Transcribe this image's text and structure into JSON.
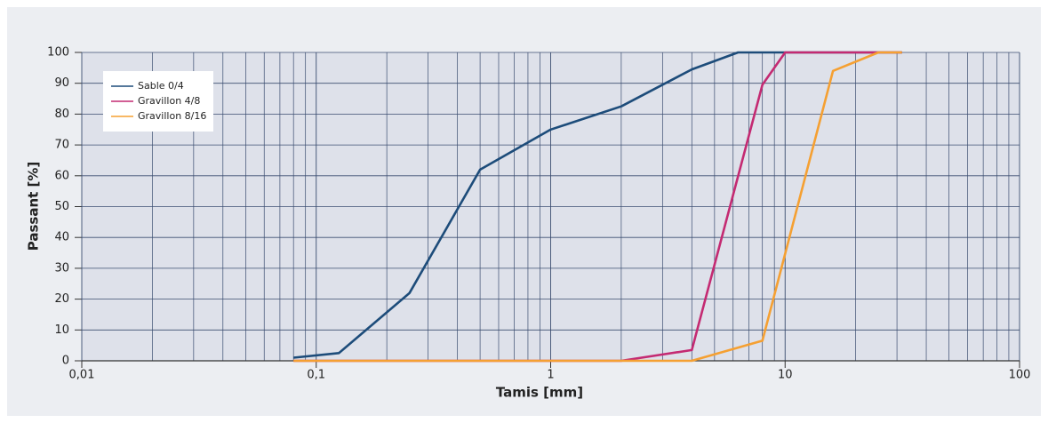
{
  "chart_data": {
    "type": "line",
    "xlabel": "Tamis [mm]",
    "ylabel": "Passant [%]",
    "log_x": true,
    "grid": true,
    "legend": "upper left",
    "xlim": [
      0.01,
      100
    ],
    "xticks": [
      {
        "value": 0.01,
        "label": "0,01"
      },
      {
        "value": 0.1,
        "label": "0,1"
      },
      1,
      10,
      100
    ],
    "ylim": [
      0,
      100
    ],
    "yticks": [
      0,
      10,
      20,
      30,
      40,
      50,
      60,
      70,
      80,
      90,
      100
    ],
    "series": [
      {
        "name": "Sable 0/4",
        "color": "#1d4c7a",
        "x": [
          0.08,
          0.125,
          0.25,
          0.5,
          1,
          2,
          4,
          6.3,
          31.5
        ],
        "values": [
          1,
          2.5,
          22,
          62,
          75,
          82.5,
          94.5,
          100,
          100
        ]
      },
      {
        "name": "Gravillon 4/8",
        "color": "#c42a72",
        "x": [
          0.08,
          2,
          4,
          8,
          10,
          31.5
        ],
        "values": [
          0,
          0,
          3.5,
          89.5,
          100,
          100
        ]
      },
      {
        "name": "Gravillon 8/16",
        "color": "#f5a032",
        "x": [
          0.08,
          4,
          8,
          16,
          25,
          31.5
        ],
        "values": [
          0,
          0,
          6.5,
          94,
          100,
          100
        ]
      }
    ]
  }
}
